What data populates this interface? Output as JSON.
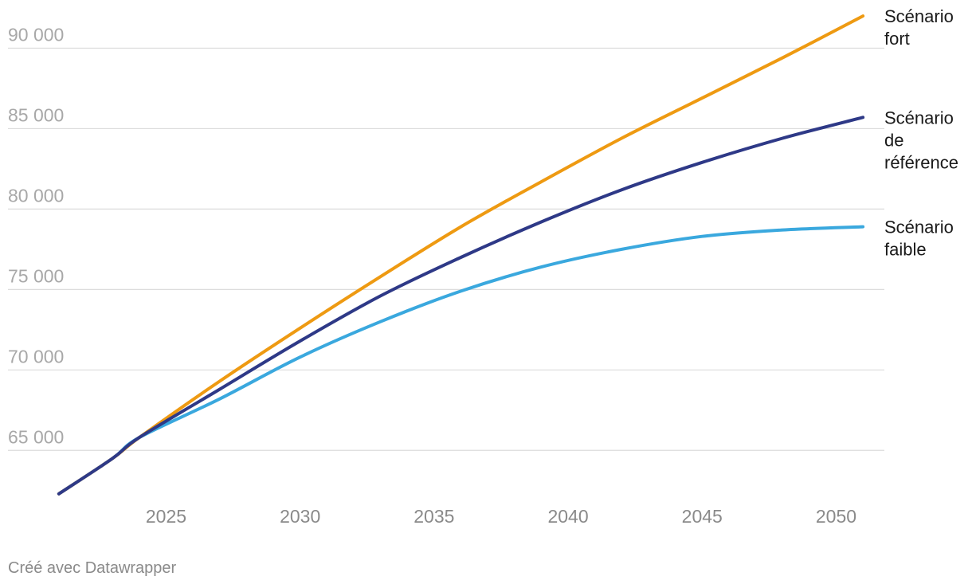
{
  "chart_data": {
    "type": "line",
    "title": "",
    "xlabel": "",
    "ylabel": "",
    "x_ticks": [
      "2025",
      "2030",
      "2035",
      "2040",
      "2045",
      "2050"
    ],
    "y_ticks": [
      "65 000",
      "70 000",
      "75 000",
      "80 000",
      "85 000",
      "90 000"
    ],
    "xlim": [
      2019.1,
      2051.8
    ],
    "ylim": [
      61300,
      92400
    ],
    "grid": true,
    "legend": "direct labels at line ends",
    "series": [
      {
        "name": "Scénario fort",
        "color": "#ee9a12",
        "points": [
          [
            2021,
            62300
          ],
          [
            2023,
            64500
          ],
          [
            2024,
            65800
          ],
          [
            2027,
            69300
          ],
          [
            2030,
            72600
          ],
          [
            2033,
            75800
          ],
          [
            2036,
            78900
          ],
          [
            2039,
            81700
          ],
          [
            2042,
            84400
          ],
          [
            2045,
            86900
          ],
          [
            2048,
            89400
          ],
          [
            2051,
            92000
          ]
        ]
      },
      {
        "name": "Scénario de référence",
        "color": "#2e3987",
        "points": [
          [
            2021,
            62300
          ],
          [
            2023,
            64500
          ],
          [
            2024,
            65800
          ],
          [
            2027,
            68800
          ],
          [
            2030,
            71800
          ],
          [
            2033,
            74600
          ],
          [
            2036,
            77000
          ],
          [
            2039,
            79200
          ],
          [
            2042,
            81200
          ],
          [
            2045,
            82900
          ],
          [
            2048,
            84400
          ],
          [
            2051,
            85700
          ]
        ]
      },
      {
        "name": "Scénario faible",
        "color": "#3aa8de",
        "points": [
          [
            2021,
            62300
          ],
          [
            2023,
            64500
          ],
          [
            2024,
            65800
          ],
          [
            2027,
            68200
          ],
          [
            2030,
            70800
          ],
          [
            2033,
            73000
          ],
          [
            2036,
            74900
          ],
          [
            2039,
            76400
          ],
          [
            2042,
            77500
          ],
          [
            2045,
            78300
          ],
          [
            2048,
            78700
          ],
          [
            2051,
            78900
          ]
        ]
      }
    ],
    "series_labels": [
      [
        "Scénario",
        "fort"
      ],
      [
        "Scénario",
        "de",
        "référence"
      ],
      [
        "Scénario",
        "faible"
      ]
    ]
  },
  "footer": {
    "credit": "Créé avec Datawrapper"
  }
}
